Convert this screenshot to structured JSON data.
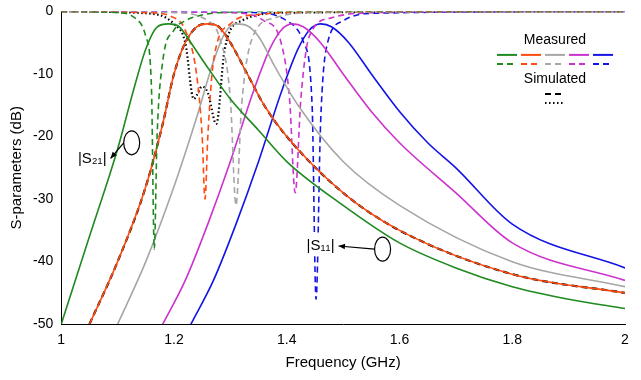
{
  "chart_data": {
    "type": "line",
    "x_label": "Frequency (GHz)",
    "y_label": "S-parameters (dB)",
    "xlim": [
      1,
      2
    ],
    "xticks": [
      1,
      1.2,
      1.4,
      1.6,
      1.8,
      2
    ],
    "ylim": [
      -50,
      0
    ],
    "yticks": [
      -50,
      -40,
      -30,
      -20,
      -10,
      0
    ],
    "grid": false,
    "legend": "upper right",
    "annotations": [
      {
        "text": "|S₂₁|"
      },
      {
        "text": "|S₁₁|"
      }
    ],
    "series": [
      {
        "name": "Measured",
        "color": "#1f8a1f",
        "line_style": "solid",
        "x": [
          1.0,
          1.05,
          1.1,
          1.13,
          1.15,
          1.17,
          1.19,
          1.21,
          1.23,
          1.26,
          1.3,
          1.35,
          1.4,
          1.5,
          1.6,
          1.7,
          1.8,
          1.9,
          2.0
        ],
        "values": [
          -50,
          -36,
          -22,
          -12,
          -6,
          -2.5,
          -2,
          -2.5,
          -5,
          -9,
          -14,
          -19,
          -24,
          -31,
          -37,
          -41,
          -44,
          -46,
          -47.5
        ]
      },
      {
        "name": "Measured",
        "color": "#1f8a1f",
        "line_style": "dashed",
        "x": [
          1.0,
          1.1,
          1.13,
          1.15,
          1.16,
          1.165,
          1.17,
          1.18,
          1.2,
          1.22,
          1.24,
          1.26,
          1.3,
          1.4,
          1.6,
          2.0
        ],
        "values": [
          0,
          -0.2,
          -1,
          -4,
          -12,
          -38,
          -20,
          -8,
          -3,
          -1.5,
          -0.8,
          -0.4,
          -0.1,
          0,
          0,
          0
        ]
      },
      {
        "name": "Measured",
        "color": "#ff4a10",
        "line_style": "solid",
        "x": [
          1.05,
          1.1,
          1.15,
          1.18,
          1.2,
          1.22,
          1.24,
          1.26,
          1.28,
          1.3,
          1.33,
          1.36,
          1.4,
          1.5,
          1.6,
          1.8,
          2.0
        ],
        "values": [
          -50,
          -40,
          -28,
          -18,
          -10,
          -5,
          -2.5,
          -2,
          -2.5,
          -5,
          -10,
          -15,
          -20,
          -29,
          -35,
          -42,
          -45
        ]
      },
      {
        "name": "Measured",
        "color": "#ff4a10",
        "line_style": "dashed",
        "x": [
          1.0,
          1.15,
          1.2,
          1.22,
          1.24,
          1.25,
          1.255,
          1.26,
          1.27,
          1.3,
          1.35,
          1.5,
          2.0
        ],
        "values": [
          0,
          -0.2,
          -1,
          -3,
          -10,
          -20,
          -30,
          -20,
          -8,
          -2,
          -0.5,
          0,
          0
        ]
      },
      {
        "name": "Measured",
        "color": "#a6a6a6",
        "line_style": "solid",
        "x": [
          1.1,
          1.15,
          1.2,
          1.24,
          1.27,
          1.29,
          1.31,
          1.33,
          1.35,
          1.38,
          1.42,
          1.5,
          1.6,
          1.8,
          2.0
        ],
        "values": [
          -50,
          -40,
          -28,
          -17,
          -8,
          -3.5,
          -2,
          -2.3,
          -4,
          -9,
          -15,
          -24,
          -31,
          -40,
          -44
        ]
      },
      {
        "name": "Measured",
        "color": "#a6a6a6",
        "line_style": "dashed",
        "x": [
          1.0,
          1.2,
          1.26,
          1.28,
          1.3,
          1.31,
          1.32,
          1.34,
          1.38,
          1.45,
          2.0
        ],
        "values": [
          0,
          -0.2,
          -1.5,
          -4,
          -14,
          -31,
          -15,
          -4,
          -1,
          -0.2,
          0
        ]
      },
      {
        "name": "Measured",
        "color": "#cc33cc",
        "line_style": "solid",
        "x": [
          1.18,
          1.22,
          1.26,
          1.3,
          1.34,
          1.37,
          1.39,
          1.41,
          1.43,
          1.46,
          1.5,
          1.55,
          1.6,
          1.7,
          1.8,
          2.0
        ],
        "values": [
          -50,
          -43,
          -34,
          -24,
          -13,
          -6,
          -3,
          -2,
          -2.5,
          -5,
          -10,
          -16,
          -21,
          -29,
          -37,
          -43
        ]
      },
      {
        "name": "Measured",
        "color": "#cc33cc",
        "line_style": "dashed",
        "x": [
          1.0,
          1.3,
          1.36,
          1.39,
          1.405,
          1.415,
          1.425,
          1.44,
          1.48,
          1.55,
          2.0
        ],
        "values": [
          0,
          -0.2,
          -1.5,
          -5,
          -14,
          -29,
          -14,
          -4,
          -1,
          -0.2,
          0
        ]
      },
      {
        "name": "Measured",
        "color": "#1414e6",
        "line_style": "solid",
        "x": [
          1.23,
          1.27,
          1.31,
          1.35,
          1.39,
          1.42,
          1.44,
          1.46,
          1.48,
          1.51,
          1.55,
          1.6,
          1.65,
          1.7,
          1.8,
          2.0
        ],
        "values": [
          -50,
          -43,
          -34,
          -24,
          -13,
          -6,
          -3,
          -2,
          -2.5,
          -5,
          -10,
          -16,
          -21,
          -25,
          -34,
          -41
        ]
      },
      {
        "name": "Measured",
        "color": "#1414e6",
        "line_style": "dashed",
        "x": [
          1.0,
          1.35,
          1.4,
          1.43,
          1.445,
          1.452,
          1.46,
          1.47,
          1.5,
          1.55,
          2.0
        ],
        "values": [
          0,
          -0.2,
          -1.5,
          -5,
          -15,
          -46,
          -18,
          -6,
          -1.5,
          -0.3,
          0
        ]
      },
      {
        "name": "Simulated",
        "color": "#000000",
        "line_style": "dashed",
        "x": [
          1.05,
          1.1,
          1.15,
          1.18,
          1.2,
          1.22,
          1.24,
          1.26,
          1.28,
          1.3,
          1.33,
          1.36,
          1.4,
          1.5,
          1.6,
          1.8,
          2.0
        ],
        "values": [
          -50,
          -40,
          -28,
          -18,
          -10,
          -5,
          -2.5,
          -2,
          -2.5,
          -5,
          -10,
          -15,
          -20,
          -29,
          -35,
          -42,
          -45
        ]
      },
      {
        "name": "Simulated",
        "color": "#000000",
        "line_style": "dotted",
        "x": [
          1.0,
          1.15,
          1.2,
          1.22,
          1.235,
          1.25,
          1.26,
          1.275,
          1.29,
          1.32,
          1.4,
          2.0
        ],
        "values": [
          0,
          -0.3,
          -2,
          -5,
          -14,
          -12,
          -13,
          -18,
          -6,
          -1.5,
          -0.2,
          0
        ]
      }
    ]
  }
}
